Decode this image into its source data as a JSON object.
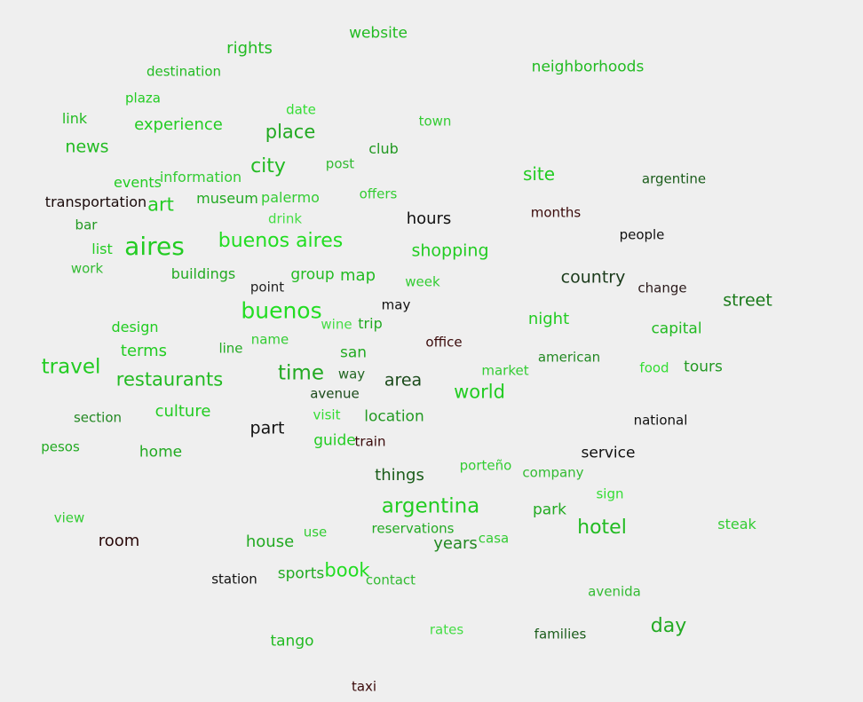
{
  "words": [
    {
      "text": "website",
      "color": "#22bb22"
    },
    {
      "text": "rights",
      "color": "#22bb22"
    },
    {
      "text": "destination",
      "color": "#22bb22"
    },
    {
      "text": "neighborhoods",
      "color": "#22bb22"
    },
    {
      "text": "plaza",
      "color": "#22cc22"
    },
    {
      "text": "date",
      "color": "#33dd33"
    },
    {
      "text": "town",
      "color": "#33cc33"
    },
    {
      "text": "link",
      "color": "#22bb22"
    },
    {
      "text": "experience",
      "color": "#22cc22"
    },
    {
      "text": "place",
      "color": "#22aa22"
    },
    {
      "text": "news",
      "color": "#22bb22"
    },
    {
      "text": "club",
      "color": "#229922"
    },
    {
      "text": "city",
      "color": "#22bb22"
    },
    {
      "text": "post",
      "color": "#33bb33"
    },
    {
      "text": "site",
      "color": "#22cc22"
    },
    {
      "text": "argentine",
      "color": "#1a5c1a"
    },
    {
      "text": "events",
      "color": "#22cc22"
    },
    {
      "text": "information",
      "color": "#33cc33"
    },
    {
      "text": "transportation",
      "color": "#1a0a0a"
    },
    {
      "text": "art",
      "color": "#22cc22"
    },
    {
      "text": "museum",
      "color": "#22aa22"
    },
    {
      "text": "palermo",
      "color": "#33cc33"
    },
    {
      "text": "offers",
      "color": "#33cc33"
    },
    {
      "text": "drink",
      "color": "#44dd44"
    },
    {
      "text": "hours",
      "color": "#111111"
    },
    {
      "text": "months",
      "color": "#3a0a0a"
    },
    {
      "text": "bar",
      "color": "#229922"
    },
    {
      "text": "people",
      "color": "#111111"
    },
    {
      "text": "aires",
      "color": "#22cc22"
    },
    {
      "text": "buenos aires",
      "color": "#22dd22"
    },
    {
      "text": "list",
      "color": "#22cc22"
    },
    {
      "text": "shopping",
      "color": "#22cc22"
    },
    {
      "text": "work",
      "color": "#33bb33"
    },
    {
      "text": "buildings",
      "color": "#22aa22"
    },
    {
      "text": "group",
      "color": "#22bb22"
    },
    {
      "text": "map",
      "color": "#22bb22"
    },
    {
      "text": "point",
      "color": "#222222"
    },
    {
      "text": "week",
      "color": "#33cc33"
    },
    {
      "text": "country",
      "color": "#1a3a1a"
    },
    {
      "text": "change",
      "color": "#2a1a1a"
    },
    {
      "text": "street",
      "color": "#1a7a1a"
    },
    {
      "text": "may",
      "color": "#111111"
    },
    {
      "text": "buenos",
      "color": "#22dd22"
    },
    {
      "text": "night",
      "color": "#22cc22"
    },
    {
      "text": "design",
      "color": "#22cc22"
    },
    {
      "text": "wine",
      "color": "#44dd44"
    },
    {
      "text": "trip",
      "color": "#22aa22"
    },
    {
      "text": "name",
      "color": "#33cc33"
    },
    {
      "text": "capital",
      "color": "#22bb22"
    },
    {
      "text": "office",
      "color": "#3a0a0a"
    },
    {
      "text": "terms",
      "color": "#22cc22"
    },
    {
      "text": "line",
      "color": "#22aa22"
    },
    {
      "text": "san",
      "color": "#22aa22"
    },
    {
      "text": "american",
      "color": "#228822"
    },
    {
      "text": "travel",
      "color": "#22cc22"
    },
    {
      "text": "market",
      "color": "#33cc33"
    },
    {
      "text": "food",
      "color": "#33dd33"
    },
    {
      "text": "tours",
      "color": "#229922"
    },
    {
      "text": "way",
      "color": "#226622"
    },
    {
      "text": "restaurants",
      "color": "#22bb22"
    },
    {
      "text": "time",
      "color": "#22aa22"
    },
    {
      "text": "area",
      "color": "#1a4a1a"
    },
    {
      "text": "avenue",
      "color": "#1a4a1a"
    },
    {
      "text": "world",
      "color": "#22cc22"
    },
    {
      "text": "culture",
      "color": "#22cc22"
    },
    {
      "text": "visit",
      "color": "#33dd33"
    },
    {
      "text": "location",
      "color": "#229922"
    },
    {
      "text": "section",
      "color": "#228822"
    },
    {
      "text": "national",
      "color": "#111111"
    },
    {
      "text": "part",
      "color": "#111111"
    },
    {
      "text": "guide",
      "color": "#22cc22"
    },
    {
      "text": "train",
      "color": "#3a0a0a"
    },
    {
      "text": "pesos",
      "color": "#22aa22"
    },
    {
      "text": "home",
      "color": "#22aa22"
    },
    {
      "text": "service",
      "color": "#111111"
    },
    {
      "text": "porteño",
      "color": "#33cc33"
    },
    {
      "text": "things",
      "color": "#1a5c1a"
    },
    {
      "text": "company",
      "color": "#33bb33"
    },
    {
      "text": "sign",
      "color": "#33dd33"
    },
    {
      "text": "argentina",
      "color": "#22cc22"
    },
    {
      "text": "park",
      "color": "#22aa22"
    },
    {
      "text": "view",
      "color": "#33cc33"
    },
    {
      "text": "steak",
      "color": "#33cc33"
    },
    {
      "text": "reservations",
      "color": "#22aa22"
    },
    {
      "text": "hotel",
      "color": "#22bb22"
    },
    {
      "text": "room",
      "color": "#2a0a0a"
    },
    {
      "text": "use",
      "color": "#33cc33"
    },
    {
      "text": "house",
      "color": "#22aa22"
    },
    {
      "text": "years",
      "color": "#228822"
    },
    {
      "text": "casa",
      "color": "#33cc33"
    },
    {
      "text": "book",
      "color": "#22dd22"
    },
    {
      "text": "station",
      "color": "#111111"
    },
    {
      "text": "sports",
      "color": "#22aa22"
    },
    {
      "text": "contact",
      "color": "#33bb33"
    },
    {
      "text": "avenida",
      "color": "#33bb33"
    },
    {
      "text": "day",
      "color": "#22aa22"
    },
    {
      "text": "rates",
      "color": "#44dd44"
    },
    {
      "text": "families",
      "color": "#1a5c1a"
    },
    {
      "text": "tango",
      "color": "#22bb22"
    },
    {
      "text": "taxi",
      "color": "#3a0a0a"
    }
  ]
}
